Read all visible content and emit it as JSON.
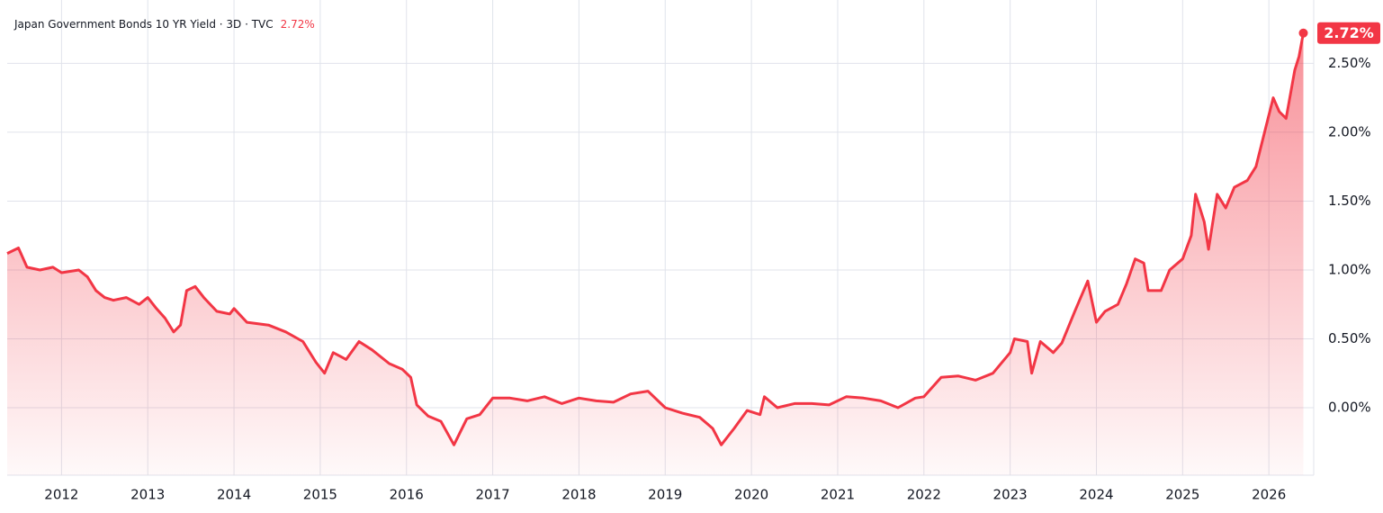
{
  "chart_data": {
    "type": "area",
    "title": "Japan Government Bonds 10 YR Yield · 3D · TVC",
    "current": {
      "value": 2.72,
      "label": "2.72%"
    },
    "grid": true,
    "xlim": [
      2011.37,
      2026.52
    ],
    "xticks": [
      2012,
      2013,
      2014,
      2015,
      2016,
      2017,
      2018,
      2019,
      2020,
      2021,
      2022,
      2023,
      2024,
      2025,
      2026
    ],
    "ylim": [
      -0.49,
      2.96
    ],
    "yticks": [
      {
        "value": 0,
        "label": "0.00%"
      },
      {
        "value": 0.5,
        "label": "0.50%"
      },
      {
        "value": 1,
        "label": "1.00%"
      },
      {
        "value": 1.5,
        "label": "1.50%"
      },
      {
        "value": 2,
        "label": "2.00%"
      },
      {
        "value": 2.5,
        "label": "2.50%"
      }
    ],
    "series": [
      {
        "color": "#f23645",
        "x": [
          2011.37,
          2011.5,
          2011.6,
          2011.75,
          2011.9,
          2012.0,
          2012.2,
          2012.3,
          2012.4,
          2012.5,
          2012.6,
          2012.75,
          2012.9,
          2013.0,
          2013.1,
          2013.2,
          2013.3,
          2013.38,
          2013.45,
          2013.55,
          2013.65,
          2013.8,
          2013.95,
          2014.0,
          2014.15,
          2014.4,
          2014.6,
          2014.8,
          2014.95,
          2015.05,
          2015.15,
          2015.3,
          2015.45,
          2015.6,
          2015.8,
          2015.95,
          2016.05,
          2016.12,
          2016.25,
          2016.4,
          2016.55,
          2016.7,
          2016.85,
          2017.0,
          2017.2,
          2017.4,
          2017.6,
          2017.8,
          2018.0,
          2018.2,
          2018.4,
          2018.6,
          2018.8,
          2019.0,
          2019.2,
          2019.4,
          2019.55,
          2019.65,
          2019.8,
          2019.95,
          2020.1,
          2020.15,
          2020.3,
          2020.5,
          2020.7,
          2020.9,
          2021.1,
          2021.3,
          2021.5,
          2021.7,
          2021.9,
          2022.0,
          2022.2,
          2022.4,
          2022.6,
          2022.8,
          2023.0,
          2023.05,
          2023.2,
          2023.25,
          2023.35,
          2023.5,
          2023.6,
          2023.75,
          2023.9,
          2024.0,
          2024.1,
          2024.25,
          2024.35,
          2024.45,
          2024.55,
          2024.6,
          2024.75,
          2024.85,
          2025.0,
          2025.1,
          2025.15,
          2025.25,
          2025.3,
          2025.4,
          2025.5,
          2025.6,
          2025.75,
          2025.85,
          2025.95,
          2026.05,
          2026.12,
          2026.2,
          2026.3,
          2026.35,
          2026.4
        ],
        "values": [
          1.12,
          1.16,
          1.02,
          1.0,
          1.02,
          0.98,
          1.0,
          0.95,
          0.85,
          0.8,
          0.78,
          0.8,
          0.75,
          0.8,
          0.72,
          0.65,
          0.55,
          0.6,
          0.85,
          0.88,
          0.8,
          0.7,
          0.68,
          0.72,
          0.62,
          0.6,
          0.55,
          0.48,
          0.33,
          0.25,
          0.4,
          0.35,
          0.48,
          0.42,
          0.32,
          0.28,
          0.22,
          0.02,
          -0.06,
          -0.1,
          -0.27,
          -0.08,
          -0.05,
          0.07,
          0.07,
          0.05,
          0.08,
          0.03,
          0.07,
          0.05,
          0.04,
          0.1,
          0.12,
          0.0,
          -0.04,
          -0.07,
          -0.15,
          -0.27,
          -0.15,
          -0.02,
          -0.05,
          0.08,
          0.0,
          0.03,
          0.03,
          0.02,
          0.08,
          0.07,
          0.05,
          0.0,
          0.07,
          0.08,
          0.22,
          0.23,
          0.2,
          0.25,
          0.4,
          0.5,
          0.48,
          0.25,
          0.48,
          0.4,
          0.47,
          0.7,
          0.92,
          0.62,
          0.7,
          0.75,
          0.9,
          1.08,
          1.05,
          0.85,
          0.85,
          1.0,
          1.08,
          1.25,
          1.55,
          1.35,
          1.15,
          1.55,
          1.45,
          1.6,
          1.65,
          1.75,
          2.0,
          2.25,
          2.15,
          2.1,
          2.45,
          2.55,
          2.72
        ]
      }
    ]
  }
}
